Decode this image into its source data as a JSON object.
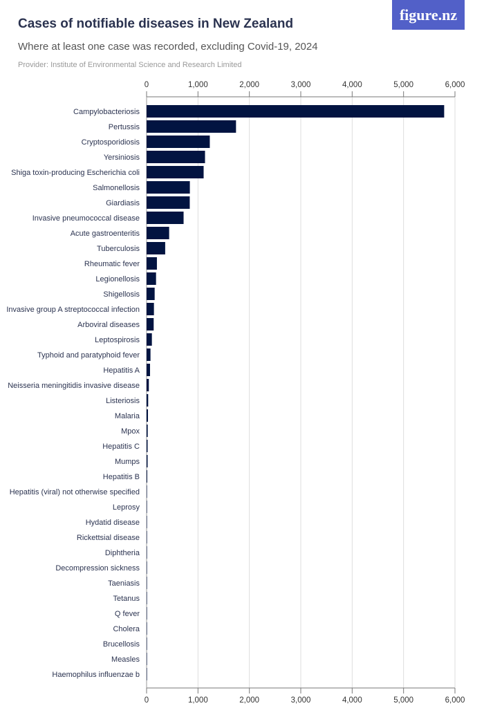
{
  "logo": "figure.nz",
  "chart_data": {
    "type": "bar",
    "orientation": "horizontal",
    "title": "Cases of notifiable diseases in New Zealand",
    "subtitle": "Where at least one case was recorded, excluding Covid-19, 2024",
    "provider": "Provider: Institute of Environmental Science and Research Limited",
    "xlim": [
      0,
      6000
    ],
    "ticks": [
      0,
      1000,
      2000,
      3000,
      4000,
      5000,
      6000
    ],
    "tick_labels": [
      "0",
      "1,000",
      "2,000",
      "3,000",
      "4,000",
      "5,000",
      "6,000"
    ],
    "grid": true,
    "bar_color": "#021441",
    "categories": [
      "Campylobacteriosis",
      "Pertussis",
      "Cryptosporidiosis",
      "Yersiniosis",
      "Shiga toxin-producing Escherichia coli",
      "Salmonellosis",
      "Giardiasis",
      "Invasive pneumococcal disease",
      "Acute gastroenteritis",
      "Tuberculosis",
      "Rheumatic fever",
      "Legionellosis",
      "Shigellosis",
      "Invasive group A streptococcal infection",
      "Arboviral diseases",
      "Leptospirosis",
      "Typhoid and paratyphoid fever",
      "Hepatitis A",
      "Neisseria meningitidis invasive disease",
      "Listeriosis",
      "Malaria",
      "Mpox",
      "Hepatitis C",
      "Mumps",
      "Hepatitis B",
      "Hepatitis (viral) not otherwise specified",
      "Leprosy",
      "Hydatid disease",
      "Rickettsial disease",
      "Diphtheria",
      "Decompression sickness",
      "Taeniasis",
      "Tetanus",
      "Q fever",
      "Cholera",
      "Brucellosis",
      "Measles",
      "Haemophilus influenzae b"
    ],
    "values": [
      5790,
      1740,
      1230,
      1137,
      1110,
      842,
      840,
      720,
      439,
      362,
      201,
      184,
      157,
      143,
      138,
      103,
      76,
      67,
      44,
      31,
      27,
      22,
      20,
      20,
      13,
      8,
      5,
      4,
      4,
      3,
      3,
      2,
      2,
      2,
      1,
      1,
      1,
      1
    ]
  }
}
